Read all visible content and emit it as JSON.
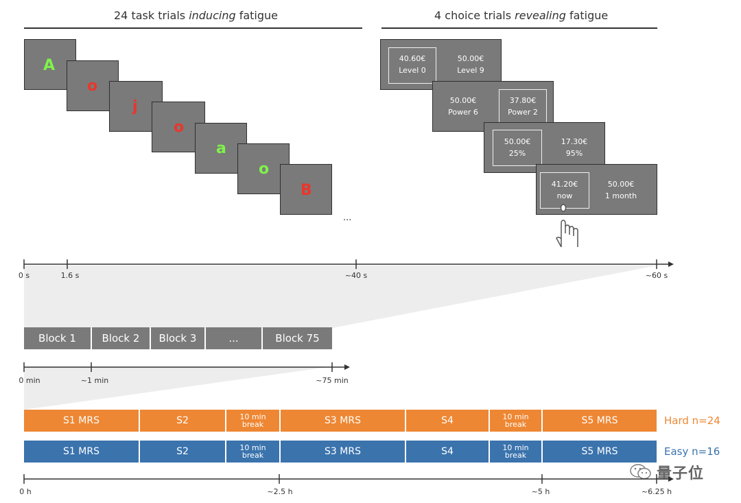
{
  "titles": {
    "task": {
      "pre": "24 task trials ",
      "em": "inducing",
      "post": " fatigue"
    },
    "choice": {
      "pre": "4 choice trials ",
      "em": "revealing",
      "post": " fatigue"
    }
  },
  "letters": [
    "A",
    "o",
    "j",
    "o",
    "a",
    "o",
    "B"
  ],
  "ellipsis": "...",
  "choices": [
    {
      "left_value": "40.60€",
      "left_label": "Level 0",
      "right_value": "50.00€",
      "right_label": "Level 9"
    },
    {
      "left_value": "50.00€",
      "left_label": "Power 6",
      "right_value": "37.80€",
      "right_label": "Power 2"
    },
    {
      "left_value": "50.00€",
      "left_label": "25%",
      "right_value": "17.30€",
      "right_label": "95%"
    },
    {
      "left_value": "41.20€",
      "left_label": "now",
      "right_value": "50.00€",
      "right_label": "1 month"
    }
  ],
  "timeline_s": {
    "labels": [
      "0 s",
      "1.6 s",
      "~40 s",
      "~60 s"
    ]
  },
  "blocks": [
    "Block 1",
    "Block 2",
    "Block 3",
    "...",
    "Block 75"
  ],
  "timeline_min": {
    "labels": [
      "0 min",
      "~1 min",
      "~75 min"
    ]
  },
  "sessions": {
    "labels": [
      "S1 MRS",
      "S2",
      "10 min break",
      "S3 MRS",
      "S4",
      "10 min break",
      "S5 MRS"
    ],
    "hard": {
      "label": "Hard n=24",
      "color": "#ee8733"
    },
    "easy": {
      "label": "Easy n=16",
      "color": "#3b73ad"
    }
  },
  "timeline_h": {
    "labels": [
      "0 h",
      "~2.5 h",
      "~5 h",
      "~6.25 h"
    ]
  },
  "watermark": "量子位"
}
